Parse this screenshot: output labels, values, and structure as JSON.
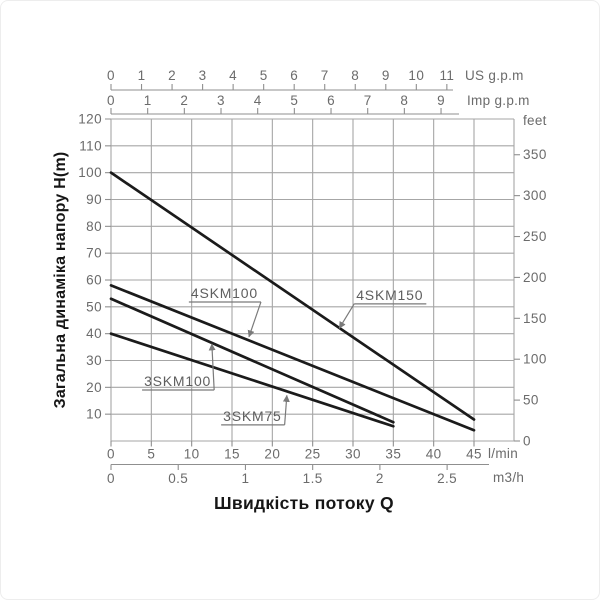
{
  "colors": {
    "background": "#ffffff",
    "grid": "#a6a6a6",
    "axis_line": "#8f8f8f",
    "curve": "#1b1b1b",
    "tick_text": "#6b6b6b",
    "annotation_text": "#5e5e5e",
    "annotation_line": "#7a7a7a",
    "title_text": "#161616"
  },
  "chart_data": {
    "type": "line",
    "title": "Швидкість потоку Q",
    "ylabel": "Загальна динаміка напору H(m)",
    "x_axes": {
      "us_gpm": {
        "label": "US g.p.m",
        "ticks": [
          0,
          1,
          2,
          3,
          4,
          5,
          6,
          7,
          8,
          9,
          10,
          11
        ],
        "lmin_per_unit": 3.785
      },
      "imp_gpm": {
        "label": "Imp g.p.m",
        "ticks": [
          0,
          1,
          2,
          3,
          4,
          5,
          6,
          7,
          8,
          9
        ],
        "lmin_per_unit": 4.546
      },
      "lmin": {
        "label": "l/min",
        "ticks": [
          0,
          5,
          10,
          15,
          20,
          25,
          30,
          35,
          40,
          45
        ],
        "lmin_per_unit": 1
      },
      "m3h": {
        "label": "m3/h",
        "ticks": [
          0,
          0.5,
          1,
          1.5,
          2,
          2.5
        ],
        "lmin_per_unit": 16.667
      }
    },
    "y_axes": {
      "meters": {
        "ticks": [
          120,
          110,
          100,
          90,
          80,
          70,
          60,
          50,
          40,
          30,
          20,
          10
        ],
        "range": [
          0,
          120
        ]
      },
      "feet": {
        "label": "feet",
        "ticks": [
          350,
          300,
          250,
          200,
          150,
          100,
          50,
          0
        ],
        "m_per_unit": 0.3048
      }
    },
    "xlim_lmin": [
      0,
      45
    ],
    "grid": true,
    "series": [
      {
        "name": "4SKM150",
        "points_lmin_m": [
          [
            0,
            100
          ],
          [
            45,
            8
          ]
        ]
      },
      {
        "name": "4SKM100",
        "points_lmin_m": [
          [
            0,
            58
          ],
          [
            45,
            4
          ]
        ]
      },
      {
        "name": "3SKM100",
        "points_lmin_m": [
          [
            0,
            53
          ],
          [
            35,
            7
          ]
        ]
      },
      {
        "name": "3SKM75",
        "points_lmin_m": [
          [
            0,
            40
          ],
          [
            35,
            5.5
          ]
        ]
      }
    ],
    "annotations": [
      {
        "label": "4SKM100",
        "text_at": [
          9.9,
          53.3
        ],
        "arrow_tip": [
          17.1,
          38.8
        ],
        "leader_from": "right"
      },
      {
        "label": "4SKM150",
        "text_at": [
          30.4,
          52.6
        ],
        "arrow_tip": [
          28.3,
          42.0
        ],
        "leader_from": "left"
      },
      {
        "label": "3SKM100",
        "text_at": [
          4.1,
          20.5
        ],
        "arrow_tip": [
          12.5,
          36.2
        ],
        "leader_from": "right"
      },
      {
        "label": "3SKM75",
        "text_at": [
          13.9,
          7.5
        ],
        "arrow_tip": [
          21.8,
          17.0
        ],
        "leader_from": "right"
      }
    ]
  }
}
